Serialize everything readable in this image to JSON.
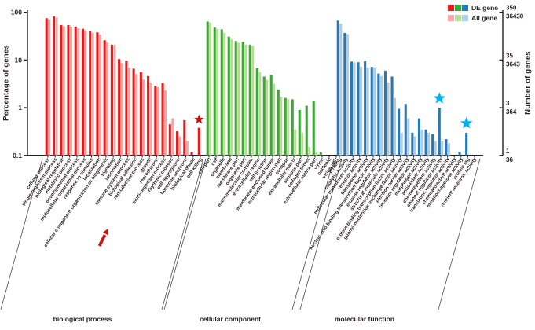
{
  "legend": {
    "de_label": "DE gene",
    "all_label": "All gene"
  },
  "axes": {
    "left_title": "Percentage of genes",
    "right_title": "Number of genes",
    "left_ticks": [
      "100",
      "10",
      "1",
      "0.1"
    ],
    "right_ticks": [
      {
        "de": "350",
        "all": "36430"
      },
      {
        "de": "35",
        "all": "3643"
      },
      {
        "de": "3",
        "all": "364"
      },
      {
        "de": "1",
        "all": "36"
      }
    ]
  },
  "colors": {
    "axis": "#231f20",
    "bracket": "#4a4a4a",
    "red_de": "#e31b1c",
    "red_all": "#f6a5a4",
    "green_de": "#3aaa35",
    "green_all": "#b7dc92",
    "blue_de": "#2878b4",
    "blue_all": "#abcee6",
    "star_red": "#cc1111",
    "star_blue": "#00b0f0",
    "arrow_red": "#cc1111"
  },
  "chart_data": {
    "type": "bar",
    "scale": "log",
    "ylim": [
      0.1,
      100
    ],
    "ylabel_left": "Percentage of genes",
    "ylabel_right": "Number of genes",
    "series_names": [
      "DE gene",
      "All gene"
    ],
    "legend_position": "top-right",
    "grid": false,
    "groups": [
      {
        "name": "biological process",
        "de_color": "#e31b1c",
        "all_color": "#f6a5a4",
        "terms": [
          {
            "label": "cellular process",
            "de": 75,
            "all": 71
          },
          {
            "label": "single-organism process",
            "de": 82,
            "all": 78
          },
          {
            "label": "biological regulation",
            "de": 54,
            "all": 51
          },
          {
            "label": "metabolic process",
            "de": 54,
            "all": 50
          },
          {
            "label": "developmental process",
            "de": 50,
            "all": 46
          },
          {
            "label": "multicellular organismal process",
            "de": 45,
            "all": 42
          },
          {
            "label": "response to stimulus",
            "de": 40,
            "all": 37
          },
          {
            "label": "localization",
            "de": 38,
            "all": 34
          },
          {
            "label": "cellular component organization or biogenesis",
            "de": 26,
            "all": 23
          },
          {
            "label": "signaling",
            "de": 21,
            "all": 21
          },
          {
            "label": "locomotion",
            "de": 10.5,
            "all": 8.6
          },
          {
            "label": "immune system process",
            "de": 9.7,
            "all": 7.0
          },
          {
            "label": "biological adhesion",
            "de": 6.6,
            "all": 5.1
          },
          {
            "label": "reproductive process",
            "de": 5.6,
            "all": 3.9
          },
          {
            "label": "growth",
            "de": 4.6,
            "all": 3.4
          },
          {
            "label": "reproduction",
            "de": 2.9,
            "all": 2.7
          },
          {
            "label": "multi-organism process",
            "de": 3.3,
            "all": 2.3
          },
          {
            "label": "rhythmic process",
            "de": 0.45,
            "all": 0.6
          },
          {
            "label": "cell aggregation",
            "de": 0.32,
            "all": 0.25
          },
          {
            "label": "hormone secretion",
            "de": 0.55,
            "all": 0.2
          },
          {
            "label": "biological phase",
            "de": 0.12,
            "all": 0.1
          },
          {
            "label": "cell killing",
            "de": 0.38,
            "all": 0.1
          }
        ]
      },
      {
        "name": "cellular component",
        "de_color": "#3aaa35",
        "all_color": "#b7dc92",
        "terms": [
          {
            "label": "cell part",
            "de": 64,
            "all": 61
          },
          {
            "label": "cell",
            "de": 48,
            "all": 45
          },
          {
            "label": "organelle",
            "de": 44,
            "all": 37
          },
          {
            "label": "membrane",
            "de": 31,
            "all": 27
          },
          {
            "label": "membrane part",
            "de": 25,
            "all": 23
          },
          {
            "label": "organelle part",
            "de": 24,
            "all": 21
          },
          {
            "label": "macromolecular complex",
            "de": 21,
            "all": 20
          },
          {
            "label": "extracellular region",
            "de": 6.8,
            "all": 5.6
          },
          {
            "label": "cell junction",
            "de": 4.5,
            "all": 3.8
          },
          {
            "label": "membrane-enclosed lumen",
            "de": 4.9,
            "all": 3.2
          },
          {
            "label": "extracellular region part",
            "de": 2.4,
            "all": 1.7
          },
          {
            "label": "synapse",
            "de": 1.6,
            "all": 1.5
          },
          {
            "label": "extracellular matrix",
            "de": 1.5,
            "all": 0.35
          },
          {
            "label": "synapse part",
            "de": 0.9,
            "all": 0.3
          },
          {
            "label": "collagen trimer",
            "de": 1.1,
            "all": 0.15
          },
          {
            "label": "extracellular matrix part",
            "de": 1.4,
            "all": 0.12
          },
          {
            "label": "virion",
            "de": 0.12,
            "all": 0
          },
          {
            "label": "nucleoid",
            "de": 0,
            "all": 0
          },
          {
            "label": "virion part",
            "de": 0,
            "all": 0
          }
        ]
      },
      {
        "name": "molecular function",
        "de_color": "#2878b4",
        "all_color": "#abcee6",
        "terms": [
          {
            "label": "binding",
            "de": 67,
            "all": 58
          },
          {
            "label": "catalytic activity",
            "de": 37,
            "all": 35
          },
          {
            "label": "molecular transducer activity",
            "de": 9.3,
            "all": 8.8
          },
          {
            "label": "receptor activity",
            "de": 9.0,
            "all": 7.2
          },
          {
            "label": "transporter activity",
            "de": 9.5,
            "all": 7.0
          },
          {
            "label": "nucleic acid binding transcription factor activity",
            "de": 7.2,
            "all": 6.8
          },
          {
            "label": "enzyme regulator activity",
            "de": 5.2,
            "all": 4.6
          },
          {
            "label": "structural molecule activity",
            "de": 6.0,
            "all": 3.4
          },
          {
            "label": "protein binding transcription factor activity",
            "de": 4.5,
            "all": 1.6
          },
          {
            "label": "guanyl-nucleotide exchange factor activity",
            "de": 0.95,
            "all": 0.3
          },
          {
            "label": "electron carrier activity",
            "de": 1.2,
            "all": 0.6
          },
          {
            "label": "receptor regulator activity",
            "de": 0.3,
            "all": 0.25
          },
          {
            "label": "morphogen activity",
            "de": 0.6,
            "all": 0.35
          },
          {
            "label": "antioxidant activity",
            "de": 0.35,
            "all": 0.3
          },
          {
            "label": "chemorepellent activity",
            "de": 0.28,
            "all": 0.2
          },
          {
            "label": "channel regulator activity",
            "de": 1.0,
            "all": 0.2
          },
          {
            "label": "translation regulator activity",
            "de": 0.22,
            "all": 0.18
          },
          {
            "label": "chemoattractant activity",
            "de": 0.1,
            "all": 0
          },
          {
            "label": "metallochaperone activity",
            "de": 0.12,
            "all": 0
          },
          {
            "label": "protein tag",
            "de": 0.3,
            "all": 0
          },
          {
            "label": "nutrient reservoir activity",
            "de": 0,
            "all": 0
          }
        ]
      }
    ],
    "annotations": {
      "stars": [
        {
          "group": 0,
          "term": "cell killing",
          "color": "#cc1111",
          "size": 6.5
        },
        {
          "group": 2,
          "term": "channel regulator activity",
          "color": "#00b0f0",
          "size": 8
        },
        {
          "group": 2,
          "term": "protein tag",
          "color": "#00b0f0",
          "size": 8
        }
      ],
      "arrow": {
        "color": "#cc1111",
        "points_at": "immune system process label"
      }
    }
  }
}
